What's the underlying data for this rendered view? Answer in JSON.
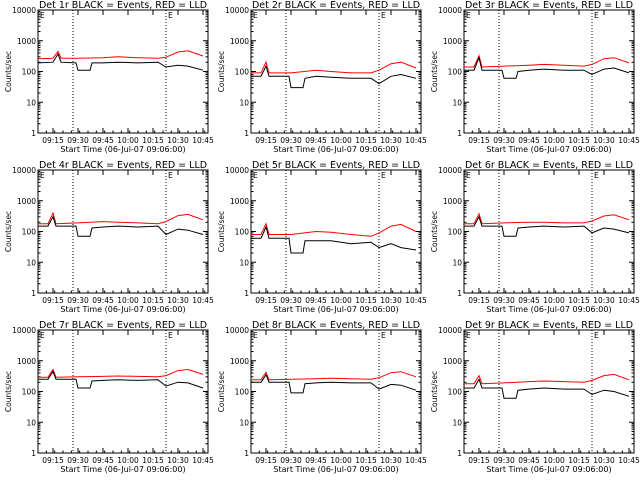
{
  "chart_data": {
    "type": "line",
    "layout": "3x3 grid",
    "x_tick_labels": [
      "09:15",
      "09:30",
      "09:45",
      "10:00",
      "10:15",
      "10:30",
      "10:45"
    ],
    "x_ticks_hours": [
      9.25,
      9.5,
      9.75,
      10.0,
      10.25,
      10.5,
      10.75
    ],
    "xlim_hours": [
      9.1,
      10.8
    ],
    "xlabel": "Start Time (06-Jul-07 09:06:00)",
    "ylabel": "Counts/sec",
    "yscale": "log",
    "ylim": [
      1,
      10000
    ],
    "y_tick_labels": [
      "1",
      "10",
      "100",
      "1000",
      "10000"
    ],
    "marker_lines_hours": [
      9.45,
      10.38
    ],
    "marker_tag": "E",
    "series_colors": {
      "events": "#000000",
      "lld": "#ff0000"
    },
    "panels": [
      {
        "title": "Det 1r BLACK = Events, RED = LLD",
        "events": [
          [
            9.1,
            190
          ],
          [
            9.25,
            200
          ],
          [
            9.3,
            370
          ],
          [
            9.33,
            200
          ],
          [
            9.48,
            190
          ],
          [
            9.5,
            110
          ],
          [
            9.62,
            110
          ],
          [
            9.64,
            190
          ],
          [
            9.75,
            190
          ],
          [
            9.9,
            200
          ],
          [
            10.1,
            190
          ],
          [
            10.3,
            200
          ],
          [
            10.38,
            140
          ],
          [
            10.5,
            160
          ],
          [
            10.6,
            150
          ],
          [
            10.75,
            110
          ]
        ],
        "lld": [
          [
            9.1,
            260
          ],
          [
            9.25,
            270
          ],
          [
            9.3,
            450
          ],
          [
            9.33,
            270
          ],
          [
            9.5,
            270
          ],
          [
            9.75,
            280
          ],
          [
            9.9,
            300
          ],
          [
            10.1,
            280
          ],
          [
            10.3,
            270
          ],
          [
            10.38,
            290
          ],
          [
            10.5,
            430
          ],
          [
            10.6,
            470
          ],
          [
            10.75,
            320
          ]
        ]
      },
      {
        "title": "Det 2r BLACK = Events, RED = LLD",
        "events": [
          [
            9.1,
            70
          ],
          [
            9.2,
            70
          ],
          [
            9.25,
            150
          ],
          [
            9.28,
            70
          ],
          [
            9.48,
            70
          ],
          [
            9.5,
            30
          ],
          [
            9.62,
            30
          ],
          [
            9.64,
            60
          ],
          [
            9.75,
            70
          ],
          [
            9.9,
            65
          ],
          [
            10.1,
            60
          ],
          [
            10.3,
            60
          ],
          [
            10.38,
            40
          ],
          [
            10.5,
            70
          ],
          [
            10.6,
            80
          ],
          [
            10.75,
            60
          ]
        ],
        "lld": [
          [
            9.1,
            90
          ],
          [
            9.2,
            90
          ],
          [
            9.25,
            200
          ],
          [
            9.28,
            90
          ],
          [
            9.5,
            90
          ],
          [
            9.75,
            110
          ],
          [
            9.9,
            100
          ],
          [
            10.1,
            90
          ],
          [
            10.3,
            90
          ],
          [
            10.38,
            110
          ],
          [
            10.5,
            180
          ],
          [
            10.6,
            200
          ],
          [
            10.75,
            130
          ]
        ]
      },
      {
        "title": "Det 3r BLACK = Events, RED = LLD",
        "events": [
          [
            9.1,
            110
          ],
          [
            9.2,
            110
          ],
          [
            9.25,
            280
          ],
          [
            9.28,
            110
          ],
          [
            9.48,
            110
          ],
          [
            9.5,
            60
          ],
          [
            9.62,
            60
          ],
          [
            9.64,
            100
          ],
          [
            9.75,
            110
          ],
          [
            9.9,
            120
          ],
          [
            10.1,
            110
          ],
          [
            10.3,
            110
          ],
          [
            10.38,
            80
          ],
          [
            10.5,
            120
          ],
          [
            10.6,
            130
          ],
          [
            10.75,
            90
          ]
        ],
        "lld": [
          [
            9.1,
            140
          ],
          [
            9.2,
            140
          ],
          [
            9.25,
            330
          ],
          [
            9.28,
            140
          ],
          [
            9.5,
            150
          ],
          [
            9.75,
            160
          ],
          [
            9.9,
            170
          ],
          [
            10.1,
            160
          ],
          [
            10.3,
            150
          ],
          [
            10.38,
            170
          ],
          [
            10.5,
            260
          ],
          [
            10.6,
            280
          ],
          [
            10.75,
            190
          ]
        ]
      },
      {
        "title": "Det 4r BLACK = Events, RED = LLD",
        "events": [
          [
            9.1,
            150
          ],
          [
            9.2,
            150
          ],
          [
            9.25,
            300
          ],
          [
            9.28,
            150
          ],
          [
            9.48,
            150
          ],
          [
            9.5,
            70
          ],
          [
            9.62,
            70
          ],
          [
            9.64,
            130
          ],
          [
            9.75,
            140
          ],
          [
            9.9,
            150
          ],
          [
            10.1,
            140
          ],
          [
            10.3,
            150
          ],
          [
            10.38,
            80
          ],
          [
            10.5,
            120
          ],
          [
            10.6,
            110
          ],
          [
            10.75,
            80
          ]
        ],
        "lld": [
          [
            9.1,
            180
          ],
          [
            9.2,
            180
          ],
          [
            9.25,
            400
          ],
          [
            9.28,
            180
          ],
          [
            9.5,
            190
          ],
          [
            9.75,
            210
          ],
          [
            9.9,
            200
          ],
          [
            10.1,
            190
          ],
          [
            10.3,
            180
          ],
          [
            10.38,
            210
          ],
          [
            10.5,
            330
          ],
          [
            10.6,
            360
          ],
          [
            10.75,
            240
          ]
        ]
      },
      {
        "title": "Det 5r BLACK = Events, RED = LLD",
        "events": [
          [
            9.1,
            60
          ],
          [
            9.2,
            60
          ],
          [
            9.25,
            140
          ],
          [
            9.28,
            60
          ],
          [
            9.48,
            60
          ],
          [
            9.5,
            20
          ],
          [
            9.62,
            20
          ],
          [
            9.64,
            50
          ],
          [
            9.75,
            50
          ],
          [
            9.9,
            50
          ],
          [
            10.1,
            40
          ],
          [
            10.3,
            45
          ],
          [
            10.38,
            30
          ],
          [
            10.5,
            40
          ],
          [
            10.6,
            30
          ],
          [
            10.75,
            25
          ]
        ],
        "lld": [
          [
            9.1,
            80
          ],
          [
            9.2,
            80
          ],
          [
            9.25,
            180
          ],
          [
            9.28,
            80
          ],
          [
            9.5,
            80
          ],
          [
            9.75,
            100
          ],
          [
            9.9,
            95
          ],
          [
            10.1,
            80
          ],
          [
            10.3,
            70
          ],
          [
            10.38,
            90
          ],
          [
            10.5,
            150
          ],
          [
            10.6,
            170
          ],
          [
            10.75,
            100
          ]
        ]
      },
      {
        "title": "Det 6r BLACK = Events, RED = LLD",
        "events": [
          [
            9.1,
            150
          ],
          [
            9.2,
            150
          ],
          [
            9.25,
            300
          ],
          [
            9.28,
            150
          ],
          [
            9.48,
            150
          ],
          [
            9.5,
            70
          ],
          [
            9.62,
            70
          ],
          [
            9.64,
            130
          ],
          [
            9.75,
            140
          ],
          [
            9.9,
            150
          ],
          [
            10.1,
            140
          ],
          [
            10.3,
            150
          ],
          [
            10.38,
            90
          ],
          [
            10.5,
            130
          ],
          [
            10.6,
            120
          ],
          [
            10.75,
            90
          ]
        ],
        "lld": [
          [
            9.1,
            180
          ],
          [
            9.2,
            180
          ],
          [
            9.25,
            380
          ],
          [
            9.28,
            180
          ],
          [
            9.5,
            190
          ],
          [
            9.75,
            200
          ],
          [
            9.9,
            200
          ],
          [
            10.1,
            190
          ],
          [
            10.3,
            190
          ],
          [
            10.38,
            220
          ],
          [
            10.5,
            320
          ],
          [
            10.6,
            350
          ],
          [
            10.75,
            240
          ]
        ]
      },
      {
        "title": "Det 7r BLACK = Events, RED = LLD",
        "events": [
          [
            9.1,
            250
          ],
          [
            9.2,
            250
          ],
          [
            9.25,
            450
          ],
          [
            9.28,
            250
          ],
          [
            9.48,
            250
          ],
          [
            9.5,
            130
          ],
          [
            9.62,
            130
          ],
          [
            9.64,
            220
          ],
          [
            9.75,
            230
          ],
          [
            9.9,
            240
          ],
          [
            10.1,
            230
          ],
          [
            10.3,
            240
          ],
          [
            10.38,
            150
          ],
          [
            10.5,
            200
          ],
          [
            10.6,
            190
          ],
          [
            10.75,
            130
          ]
        ],
        "lld": [
          [
            9.1,
            290
          ],
          [
            9.2,
            290
          ],
          [
            9.25,
            520
          ],
          [
            9.28,
            290
          ],
          [
            9.5,
            300
          ],
          [
            9.75,
            310
          ],
          [
            9.9,
            320
          ],
          [
            10.1,
            310
          ],
          [
            10.3,
            300
          ],
          [
            10.38,
            330
          ],
          [
            10.5,
            480
          ],
          [
            10.6,
            520
          ],
          [
            10.75,
            360
          ]
        ]
      },
      {
        "title": "Det 8r BLACK = Events, RED = LLD",
        "events": [
          [
            9.1,
            200
          ],
          [
            9.2,
            200
          ],
          [
            9.25,
            350
          ],
          [
            9.28,
            200
          ],
          [
            9.48,
            200
          ],
          [
            9.5,
            90
          ],
          [
            9.62,
            90
          ],
          [
            9.64,
            180
          ],
          [
            9.75,
            190
          ],
          [
            9.9,
            200
          ],
          [
            10.1,
            190
          ],
          [
            10.3,
            190
          ],
          [
            10.38,
            120
          ],
          [
            10.5,
            170
          ],
          [
            10.6,
            160
          ],
          [
            10.75,
            110
          ]
        ],
        "lld": [
          [
            9.1,
            240
          ],
          [
            9.2,
            240
          ],
          [
            9.25,
            420
          ],
          [
            9.28,
            240
          ],
          [
            9.5,
            250
          ],
          [
            9.75,
            260
          ],
          [
            9.9,
            270
          ],
          [
            10.1,
            260
          ],
          [
            10.3,
            250
          ],
          [
            10.38,
            280
          ],
          [
            10.5,
            410
          ],
          [
            10.6,
            440
          ],
          [
            10.75,
            300
          ]
        ]
      },
      {
        "title": "Det 9r BLACK = Events, RED = LLD",
        "events": [
          [
            9.1,
            130
          ],
          [
            9.2,
            130
          ],
          [
            9.25,
            250
          ],
          [
            9.28,
            130
          ],
          [
            9.48,
            130
          ],
          [
            9.5,
            60
          ],
          [
            9.62,
            60
          ],
          [
            9.64,
            110
          ],
          [
            9.75,
            120
          ],
          [
            9.9,
            130
          ],
          [
            10.1,
            120
          ],
          [
            10.3,
            120
          ],
          [
            10.38,
            80
          ],
          [
            10.5,
            110
          ],
          [
            10.6,
            100
          ],
          [
            10.75,
            70
          ]
        ],
        "lld": [
          [
            9.1,
            180
          ],
          [
            9.2,
            180
          ],
          [
            9.25,
            330
          ],
          [
            9.28,
            180
          ],
          [
            9.5,
            190
          ],
          [
            9.75,
            210
          ],
          [
            9.9,
            220
          ],
          [
            10.1,
            210
          ],
          [
            10.3,
            200
          ],
          [
            10.38,
            230
          ],
          [
            10.5,
            330
          ],
          [
            10.6,
            360
          ],
          [
            10.75,
            240
          ]
        ]
      }
    ]
  }
}
